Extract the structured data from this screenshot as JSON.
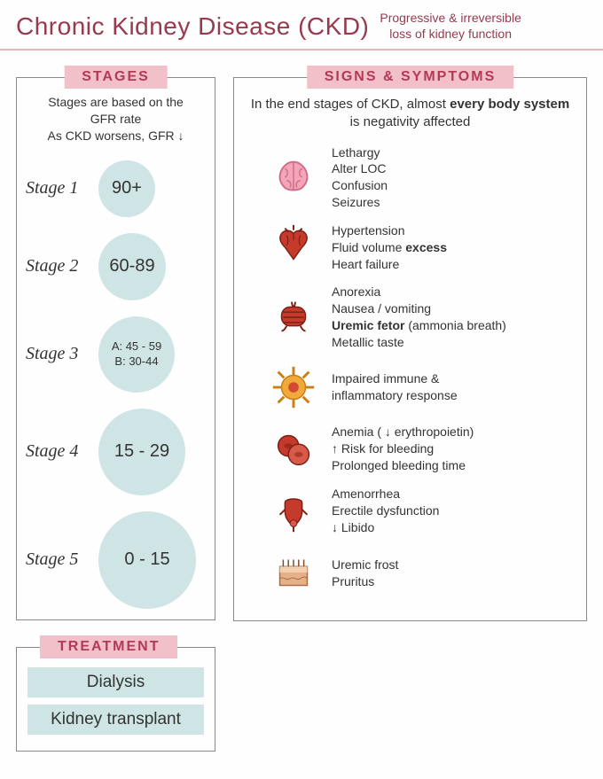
{
  "colors": {
    "accent_text": "#973a4e",
    "badge_bg": "#f2c0c9",
    "badge_text": "#b23a55",
    "circle_bg": "#cfe5e5",
    "border": "#888888",
    "rule": "#e9b3bc"
  },
  "title": {
    "main": "Chronic Kidney Disease (CKD)",
    "sub_line1": "Progressive & irreversible",
    "sub_line2": "loss of kidney function"
  },
  "stages": {
    "heading": "STAGES",
    "intro_line1": "Stages are based on the",
    "intro_line2": "GFR rate",
    "intro_line3": "As CKD worsens, GFR  ↓",
    "items": [
      {
        "label": "Stage 1",
        "value": "90+",
        "diameter": 64
      },
      {
        "label": "Stage 2",
        "value": "60-89",
        "diameter": 76
      },
      {
        "label": "Stage 3",
        "value_line1": "A: 45 - 59",
        "value_line2": "B: 30-44",
        "diameter": 86
      },
      {
        "label": "Stage 4",
        "value": "15 - 29",
        "diameter": 98
      },
      {
        "label": "Stage 5",
        "value": "0 - 15",
        "diameter": 110
      }
    ]
  },
  "treatment": {
    "heading": "TREATMENT",
    "items": [
      "Dialysis",
      "Kidney transplant"
    ]
  },
  "signs": {
    "heading": "SIGNS & SYMPTOMS",
    "intro_prefix": "In the end stages of CKD, almost ",
    "intro_bold1": "every body system",
    "intro_suffix": " is negativity affected",
    "systems": [
      {
        "icon": "brain",
        "lines": [
          "Lethargy",
          "Alter LOC",
          "Confusion",
          "Seizures"
        ]
      },
      {
        "icon": "heart",
        "lines_html": "Hypertension<br>Fluid volume <b>excess</b><br>Heart failure"
      },
      {
        "icon": "gi",
        "lines_html": "Anorexia<br>Nausea / vomiting<br><b>Uremic fetor</b> (ammonia breath)<br>Metallic taste"
      },
      {
        "icon": "immune",
        "lines": [
          "Impaired immune &",
          "inflammatory response"
        ]
      },
      {
        "icon": "blood",
        "lines": [
          "Anemia ( ↓ erythropoietin)",
          "↑ Risk for bleeding",
          "Prolonged bleeding time"
        ]
      },
      {
        "icon": "repro",
        "lines": [
          "Amenorrhea",
          "Erectile dysfunction",
          "↓ Libido"
        ]
      },
      {
        "icon": "skin",
        "lines": [
          "Uremic frost",
          "Pruritus"
        ]
      }
    ]
  }
}
